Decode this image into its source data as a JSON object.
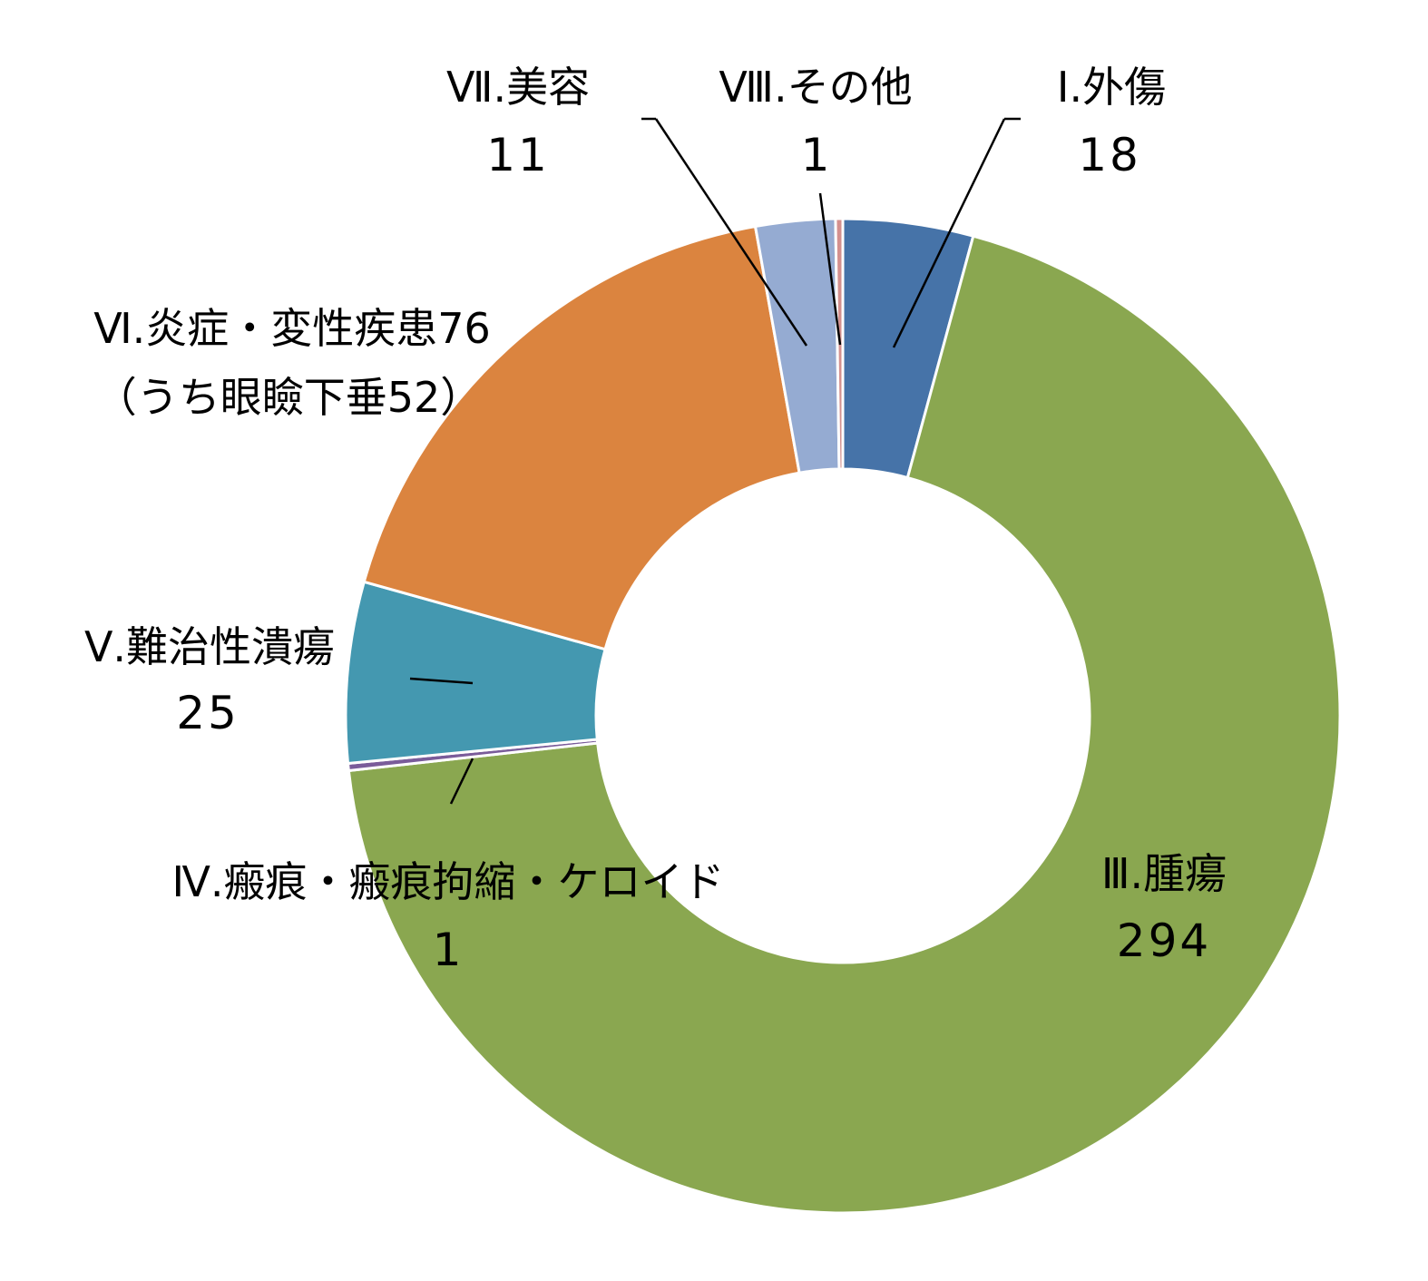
{
  "chart_data": {
    "type": "pie",
    "variant": "donut",
    "title": "",
    "legend": "none",
    "slices": [
      {
        "label": "Ⅰ.外傷",
        "value": 18,
        "value_label": "18",
        "color": "#4673a8"
      },
      {
        "label": "Ⅲ.腫瘍",
        "value": 294,
        "value_label": "294",
        "color": "#8aa750"
      },
      {
        "label": "Ⅳ.瘢痕・瘢痕拘縮・ケロイド",
        "value": 1,
        "value_label": "1",
        "color": "#7a5c9a"
      },
      {
        "label": "Ⅴ.難治性潰瘍",
        "value": 25,
        "value_label": "25",
        "color": "#4498b0"
      },
      {
        "label": "Ⅵ.炎症・変性疾患76",
        "sublabel": "（うち眼瞼下垂52）",
        "value": 76,
        "value_label": "",
        "color": "#db843f"
      },
      {
        "label": "Ⅶ.美容",
        "value": 11,
        "value_label": "11",
        "color": "#95abd2"
      },
      {
        "label": "Ⅷ.その他",
        "value": 1,
        "value_label": "1",
        "color": "#d4908e"
      }
    ]
  }
}
